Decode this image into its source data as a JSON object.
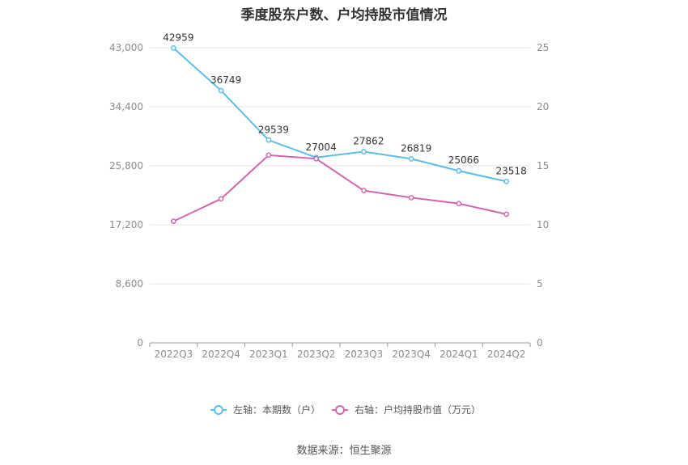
{
  "title": "季度股东户数、户均持股市值情况",
  "source": "数据来源：恒生聚源",
  "chart_data": {
    "type": "line",
    "categories": [
      "2022Q3",
      "2022Q4",
      "2023Q1",
      "2023Q2",
      "2023Q3",
      "2023Q4",
      "2024Q1",
      "2024Q2"
    ],
    "y_left": {
      "ticks": [
        "0",
        "8,600",
        "17,200",
        "25,800",
        "34,400",
        "43,000"
      ],
      "range": [
        0,
        43000
      ]
    },
    "y_right": {
      "ticks": [
        "0",
        "5",
        "10",
        "15",
        "20",
        "25"
      ],
      "range": [
        0,
        25
      ]
    },
    "series": [
      {
        "name": "左轴：本期数（户）",
        "axis": "left",
        "color": "#5bbde8",
        "values": [
          42959,
          36749,
          29539,
          27004,
          27862,
          26819,
          25066,
          23518
        ],
        "labels": [
          "42959",
          "36749",
          "29539",
          "27004",
          "27862",
          "26819",
          "25066",
          "23518"
        ]
      },
      {
        "name": "右轴：户均持股市值（万元）",
        "axis": "right",
        "color": "#d266ad",
        "values": [
          10.3,
          12.2,
          15.9,
          15.6,
          12.9,
          12.3,
          11.8,
          10.9
        ]
      }
    ],
    "grid": true,
    "legend": "bottom"
  }
}
